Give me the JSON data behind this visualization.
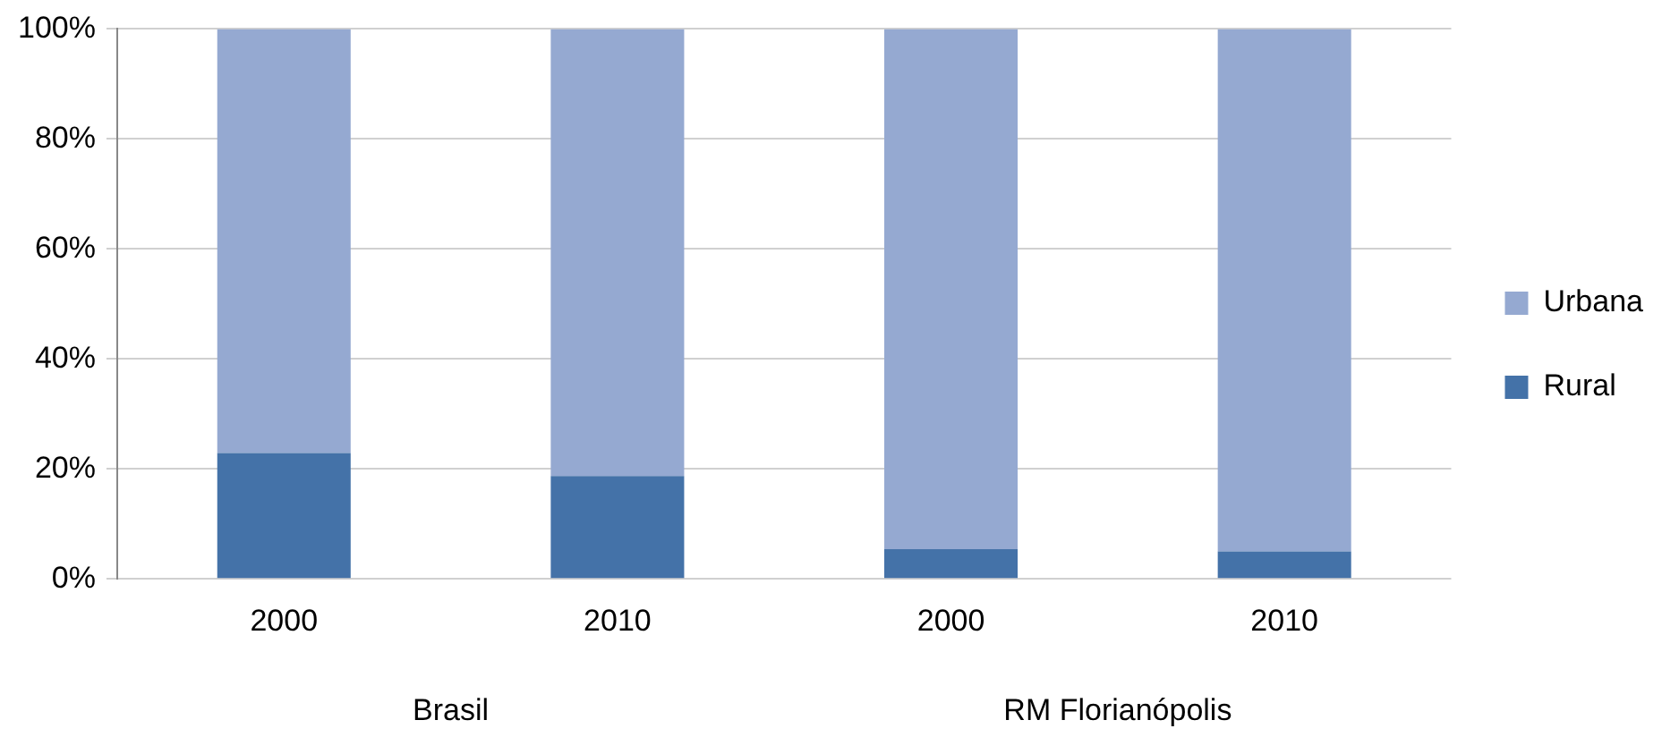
{
  "chart_data": {
    "type": "bar",
    "stacked": true,
    "categories": [
      "2000",
      "2010",
      "2000",
      "2010"
    ],
    "series": [
      {
        "name": "Rural",
        "color": "#4472a8",
        "values": [
          22.9,
          18.7,
          5.4,
          5.0
        ]
      },
      {
        "name": "Urbana",
        "color": "#95a9d1",
        "values": [
          77.1,
          81.3,
          94.6,
          95.0
        ]
      }
    ],
    "ylim": [
      0,
      100
    ],
    "yticks": [
      {
        "value": 0,
        "label": "0%"
      },
      {
        "value": 20,
        "label": "20%"
      },
      {
        "value": 40,
        "label": "40%"
      },
      {
        "value": 60,
        "label": "60%"
      },
      {
        "value": 80,
        "label": "80%"
      },
      {
        "value": 100,
        "label": "100%"
      }
    ],
    "grid": "y",
    "legend": "right",
    "annotations": [
      "Brasil",
      "RM Florianópolis"
    ]
  }
}
